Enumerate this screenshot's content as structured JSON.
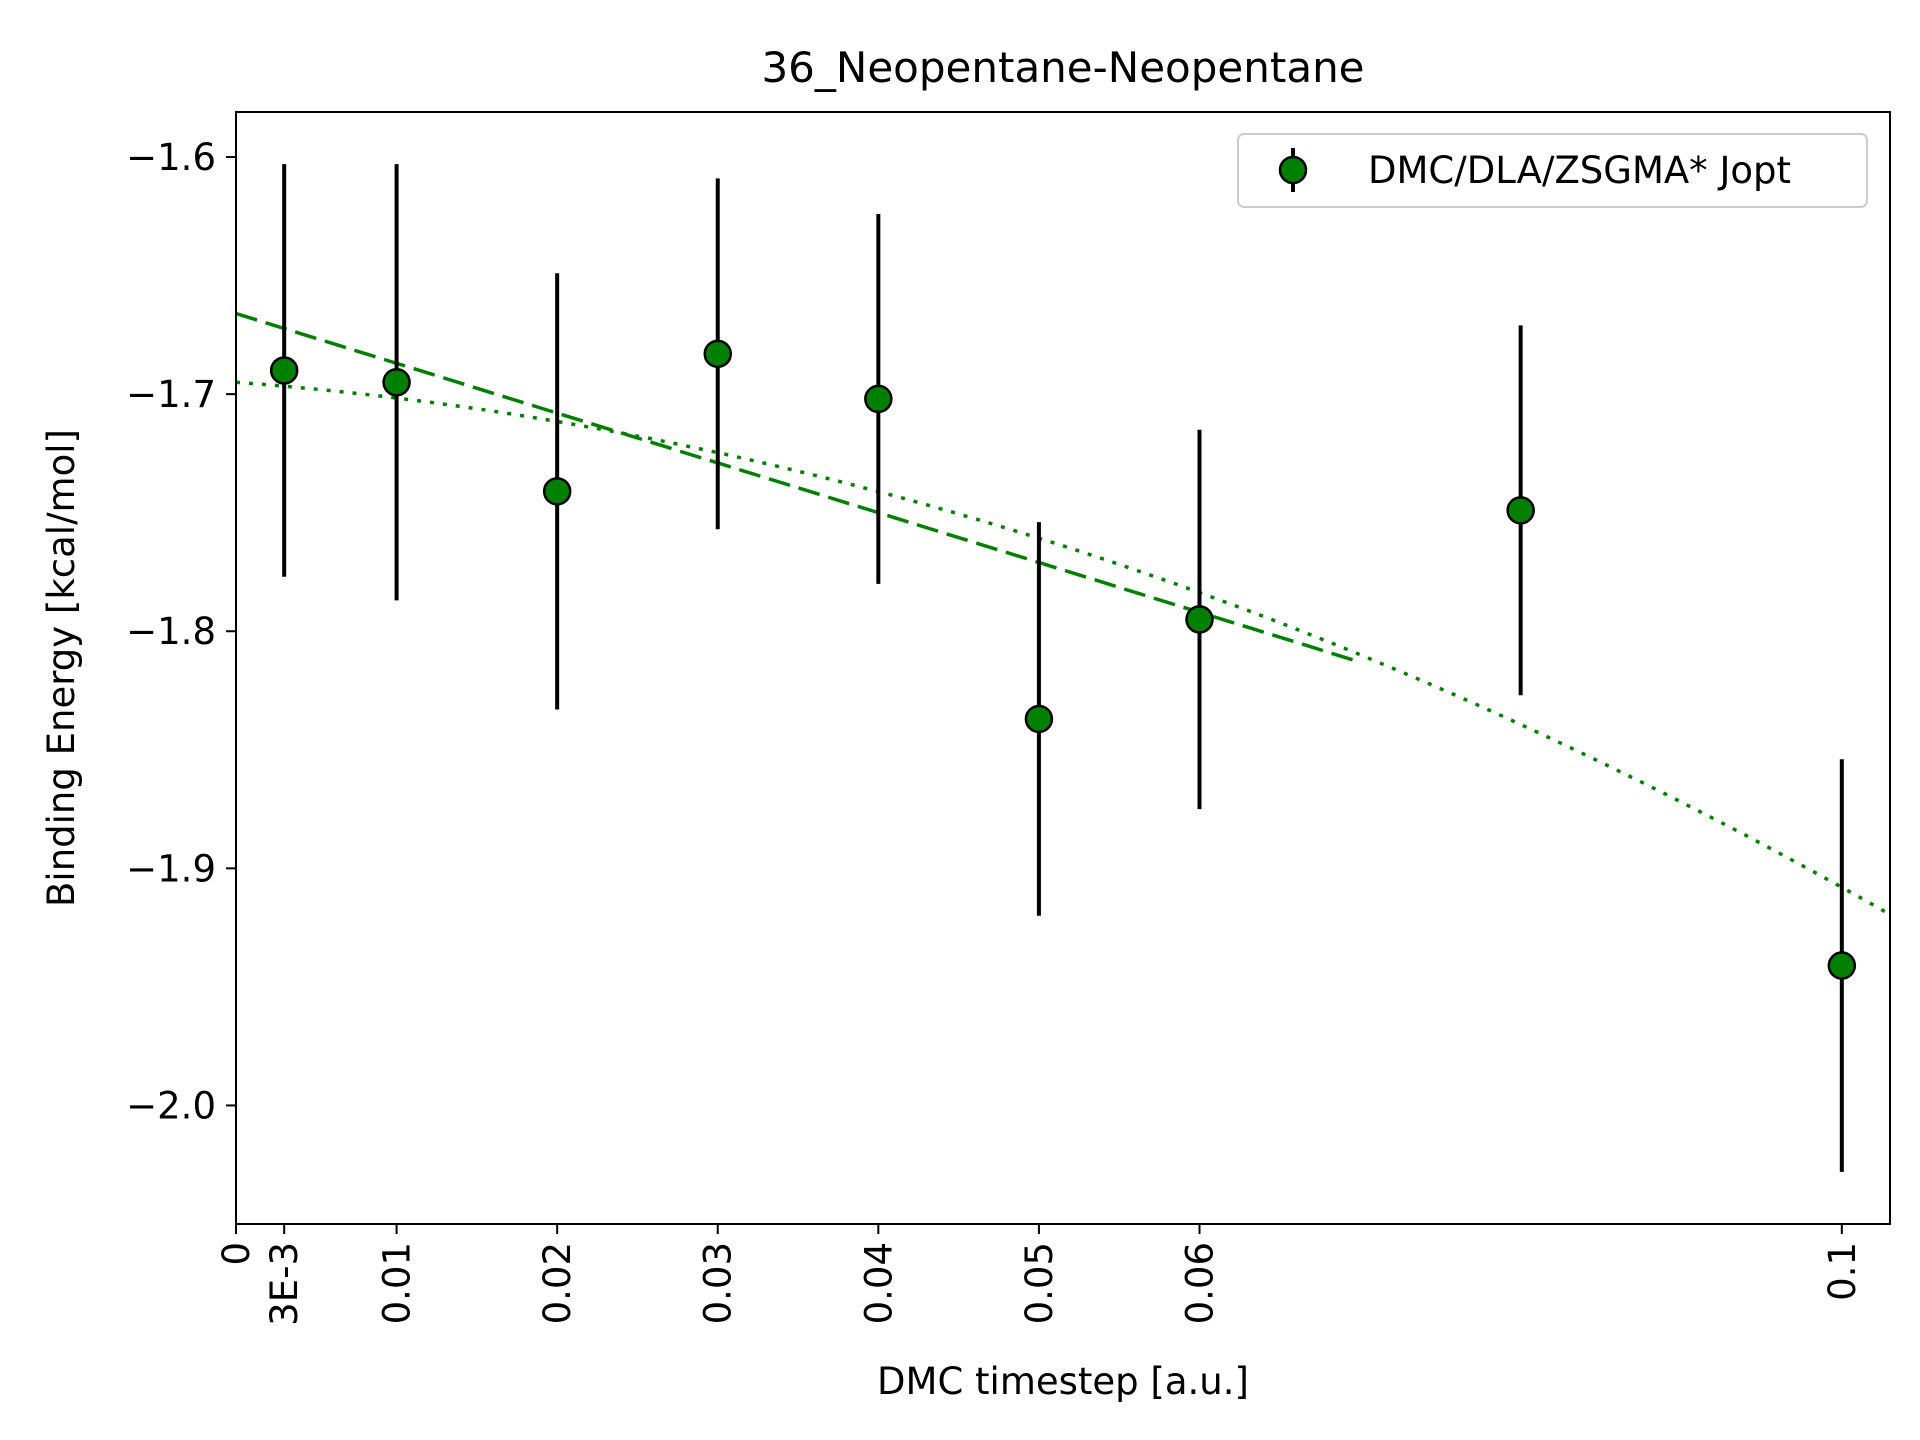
{
  "chart_data": {
    "type": "scatter",
    "title": "36_Neopentane-Neopentane",
    "xlabel": "DMC timestep [a.u.]",
    "ylabel": "Binding Energy [kcal/mol]",
    "xlim": [
      0,
      0.103
    ],
    "ylim": [
      -2.05,
      -1.581
    ],
    "x_ticks": [
      {
        "value": 0,
        "label": "0"
      },
      {
        "value": 0.003,
        "label": "3E-3"
      },
      {
        "value": 0.01,
        "label": "0.01"
      },
      {
        "value": 0.02,
        "label": "0.02"
      },
      {
        "value": 0.03,
        "label": "0.03"
      },
      {
        "value": 0.04,
        "label": "0.04"
      },
      {
        "value": 0.05,
        "label": "0.05"
      },
      {
        "value": 0.06,
        "label": "0.06"
      },
      {
        "value": 0.1,
        "label": "0.1"
      }
    ],
    "y_ticks": [
      {
        "value": -1.6,
        "label": "−1.6"
      },
      {
        "value": -1.7,
        "label": "−1.7"
      },
      {
        "value": -1.8,
        "label": "−1.8"
      },
      {
        "value": -1.9,
        "label": "−1.9"
      },
      {
        "value": -2.0,
        "label": "−2.0"
      }
    ],
    "grid": false,
    "legend_position": "top-right",
    "series": [
      {
        "name": "DMC/DLA/ZSGMA* Jopt",
        "color": "#008000",
        "marker": "circle",
        "points": [
          {
            "x": 0.003,
            "y": -1.69,
            "err": 0.087
          },
          {
            "x": 0.01,
            "y": -1.695,
            "err": 0.092
          },
          {
            "x": 0.02,
            "y": -1.741,
            "err": 0.092
          },
          {
            "x": 0.03,
            "y": -1.683,
            "err": 0.074
          },
          {
            "x": 0.04,
            "y": -1.702,
            "err": 0.078
          },
          {
            "x": 0.05,
            "y": -1.837,
            "err": 0.083
          },
          {
            "x": 0.06,
            "y": -1.795,
            "err": 0.08
          },
          {
            "x": 0.08,
            "y": -1.749,
            "err": 0.078
          },
          {
            "x": 0.1,
            "y": -1.941,
            "err": 0.087
          }
        ]
      }
    ],
    "fits": [
      {
        "style": "dashed",
        "color": "#008000",
        "x_range": [
          0,
          0.07
        ],
        "intercept": -1.666,
        "slope": -2.1
      },
      {
        "style": "dotted",
        "color": "#008000",
        "x_range": [
          0,
          0.103
        ],
        "a": -1.695,
        "b": -0.5,
        "c": -16.3
      }
    ]
  }
}
